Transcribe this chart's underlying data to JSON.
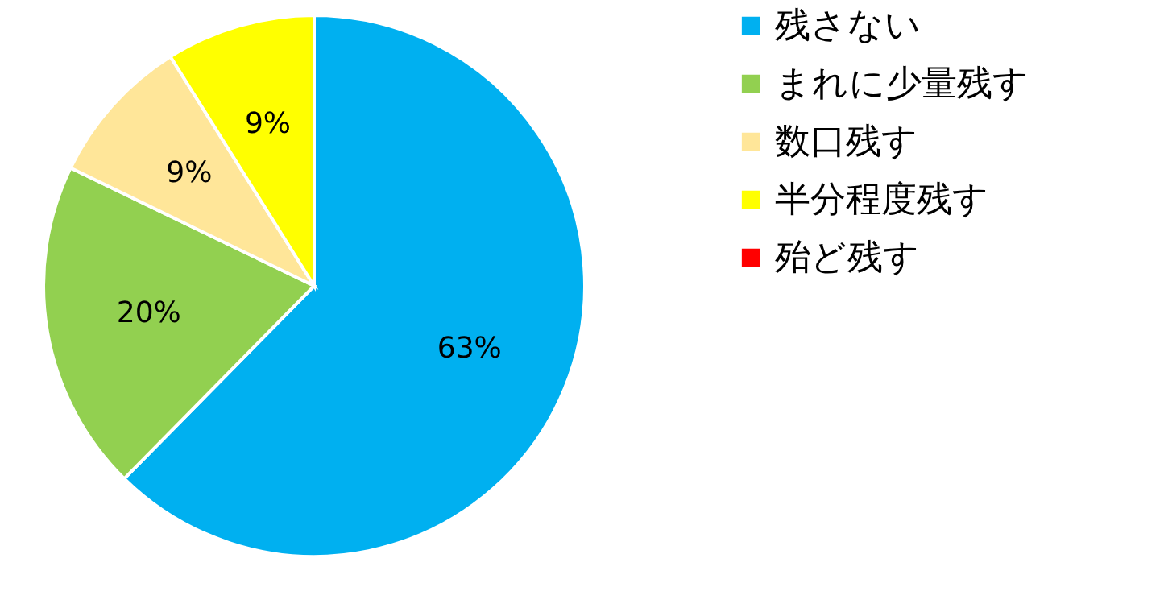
{
  "chart_data": {
    "type": "pie",
    "categories": [
      "残さない",
      "まれに少量残す",
      "数口残す",
      "半分程度残す",
      "殆ど残す"
    ],
    "values": [
      63,
      20,
      9,
      9,
      0
    ],
    "colors": [
      "#00b0f0",
      "#92d050",
      "#ffe699",
      "#ffff00",
      "#ff0000"
    ],
    "value_labels": [
      "63%",
      "20%",
      "9%",
      "9%",
      null
    ],
    "legend": "right"
  }
}
